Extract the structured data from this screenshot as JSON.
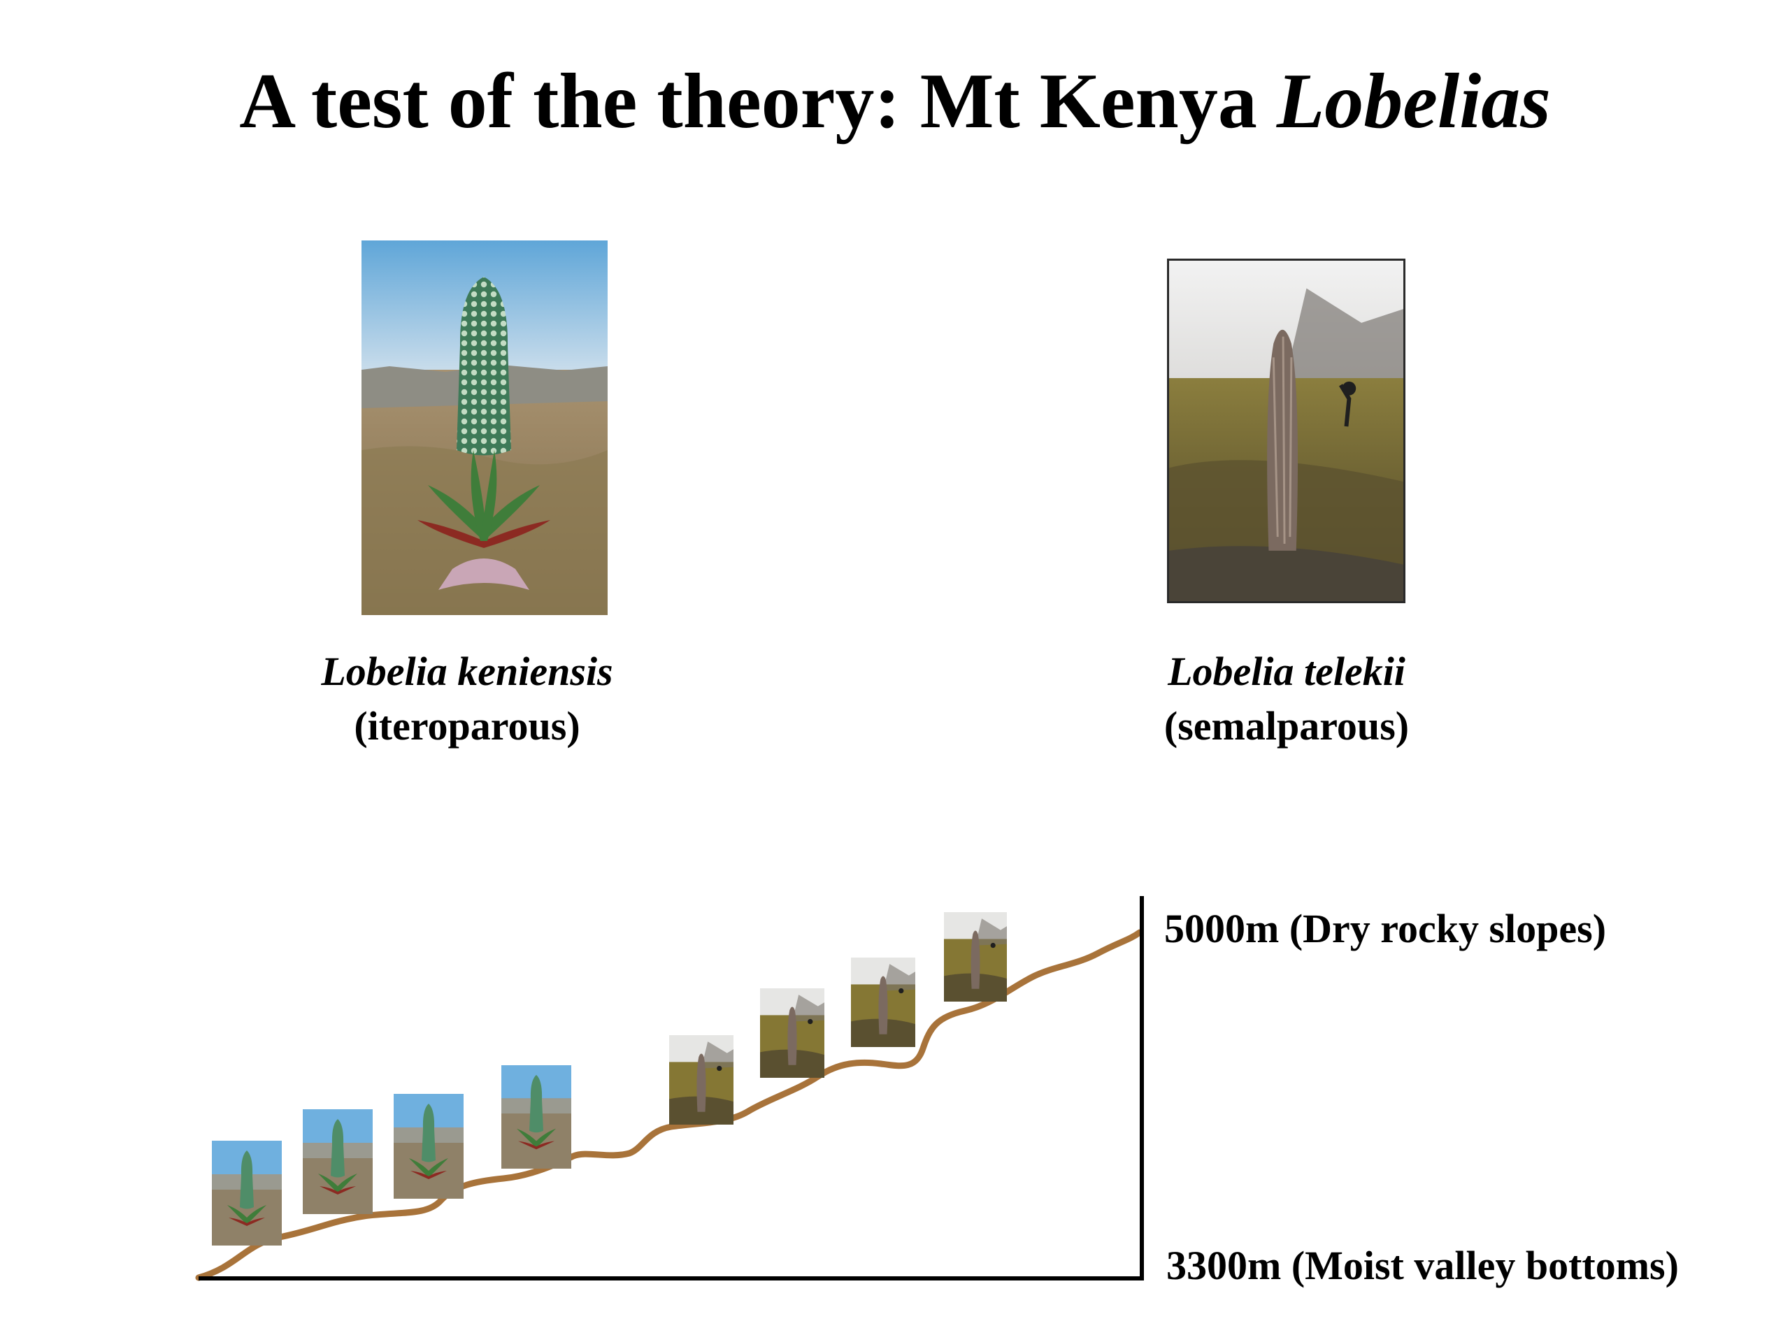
{
  "title": {
    "main": "A test of the theory: Mt Kenya ",
    "italic": "Lobelias"
  },
  "species": [
    {
      "name": "Lobelia keniensis",
      "life_history": "(iteroparous)",
      "icon": "plant-photo-rosette"
    },
    {
      "name": "Lobelia telekii",
      "life_history": "(semalparous)",
      "icon": "plant-photo-columnar"
    }
  ],
  "elevation": {
    "top_label": "5000m (Dry rocky slopes)",
    "bottom_label": "3300m (Moist valley bottoms)"
  },
  "profile": {
    "line_color": "#a8733a",
    "axis_color": "#000000",
    "sequence": [
      "keniensis",
      "keniensis",
      "keniensis",
      "keniensis",
      "telekii",
      "telekii",
      "telekii",
      "telekii"
    ]
  }
}
